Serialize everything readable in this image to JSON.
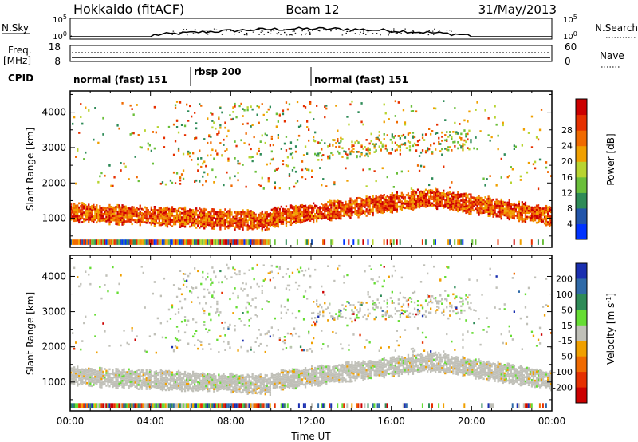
{
  "header": {
    "station": "Hokkaido (fitACF)",
    "beam": "Beam 12",
    "date": "31/May/2013"
  },
  "summary": {
    "nsky_label": "N.Sky",
    "nsky_top": "10^5",
    "nsky_bottom": "10^0",
    "nsearch_label": "N.Search",
    "nsearch_top": "10^5",
    "nsearch_bottom": "10^0",
    "freq_label": "Freq.",
    "freq_unit": "[MHz]",
    "freq_top": "18",
    "freq_bottom": "8",
    "nave_label": "Nave",
    "nave_top": "60",
    "nave_bottom": "0",
    "cpid_label": "CPID",
    "cpid_segments": [
      {
        "label": "normal (fast) 151",
        "start_hour": 0,
        "end_hour": 6
      },
      {
        "label": "rbsp 200",
        "start_hour": 6,
        "end_hour": 12
      },
      {
        "label": "normal (fast) 151",
        "start_hour": 12,
        "end_hour": 24
      }
    ]
  },
  "chart_data": [
    {
      "type": "heatmap",
      "name": "power-panel",
      "ylabel": "Slant Range [km]",
      "ylim": [
        180,
        4600
      ],
      "yticks": [
        1000,
        2000,
        3000,
        4000
      ],
      "xlim": [
        0,
        24
      ],
      "colorbar": {
        "label": "Power [dB]",
        "ticks": [
          "4",
          "8",
          "12",
          "16",
          "20",
          "24",
          "28"
        ],
        "colors": [
          "#0033ff",
          "#2255aa",
          "#2e8b57",
          "#6abf3a",
          "#b8d430",
          "#f0a000",
          "#f06a00",
          "#e63000",
          "#cc0000"
        ]
      },
      "features": [
        {
          "desc": "ground scatter",
          "ranges_km": [
            [
              1000,
              1500
            ]
          ],
          "hours": [
            0,
            24
          ],
          "power_db": 24
        }
      ]
    },
    {
      "type": "heatmap",
      "name": "velocity-panel",
      "ylabel": "Slant Range [km]",
      "ylim": [
        180,
        4600
      ],
      "yticks": [
        1000,
        2000,
        3000,
        4000
      ],
      "xlim": [
        0,
        24
      ],
      "xlabel": "Time UT",
      "xticks": [
        "00:00",
        "04:00",
        "08:00",
        "12:00",
        "16:00",
        "20:00",
        "00:00"
      ],
      "colorbar": {
        "label": "Velocity [m s^-1]",
        "ticks": [
          "200",
          "100",
          "50",
          "15",
          "-15",
          "-50",
          "-100",
          "-200"
        ],
        "colors": [
          "#1a2fb0",
          "#2f6aa8",
          "#2e8b57",
          "#66dd33",
          "#c0c0b8",
          "#f0a000",
          "#f06a00",
          "#e63000",
          "#cc0000"
        ]
      }
    }
  ]
}
